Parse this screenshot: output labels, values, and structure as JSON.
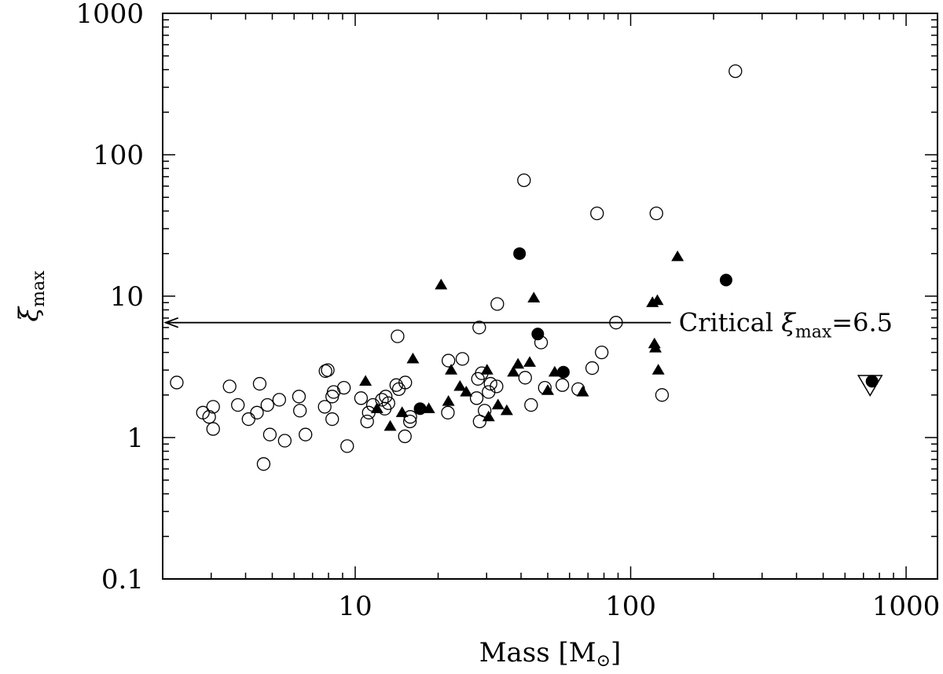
{
  "chart_data": {
    "type": "scatter",
    "title": "",
    "xlabel": "Mass [M",
    "xlabel_sub": "⊙",
    "xlabel_close": "]",
    "ylabel": "ξ",
    "ylabel_sub": "max",
    "xscale": "log",
    "yscale": "log",
    "xlim": [
      2,
      1300
    ],
    "ylim": [
      0.1,
      1000
    ],
    "x_ticks": [
      10,
      100,
      1000
    ],
    "y_ticks": [
      0.1,
      1,
      10,
      100,
      1000
    ],
    "x_tick_labels": [
      "10",
      "100",
      "1000"
    ],
    "y_tick_labels": [
      "0.1",
      "1",
      "10",
      "100",
      "1000"
    ],
    "grid": false,
    "annotation": {
      "text_prefix": "Critical ",
      "symbol": "ξ",
      "symbol_sub": "max",
      "text_suffix": "=6.5",
      "y": 6.5,
      "x_start": 140,
      "x_end": 2.05
    },
    "series": [
      {
        "marker": "open-circle",
        "points": [
          [
            2.25,
            2.45
          ],
          [
            2.8,
            1.5
          ],
          [
            2.95,
            1.4
          ],
          [
            3.05,
            1.65
          ],
          [
            3.05,
            1.15
          ],
          [
            3.5,
            2.3
          ],
          [
            3.75,
            1.7
          ],
          [
            4.1,
            1.35
          ],
          [
            4.4,
            1.5
          ],
          [
            4.5,
            2.4
          ],
          [
            4.65,
            0.65
          ],
          [
            4.8,
            1.7
          ],
          [
            4.9,
            1.05
          ],
          [
            5.3,
            1.85
          ],
          [
            5.55,
            0.95
          ],
          [
            6.25,
            1.95
          ],
          [
            6.3,
            1.55
          ],
          [
            6.6,
            1.05
          ],
          [
            7.75,
            1.65
          ],
          [
            7.8,
            2.95
          ],
          [
            7.95,
            3.0
          ],
          [
            8.25,
            1.95
          ],
          [
            8.25,
            1.35
          ],
          [
            8.35,
            2.1
          ],
          [
            9.1,
            2.25
          ],
          [
            9.35,
            0.87
          ],
          [
            10.5,
            1.9
          ],
          [
            11.05,
            1.3
          ],
          [
            11.2,
            1.5
          ],
          [
            11.6,
            1.7
          ],
          [
            12.5,
            1.85
          ],
          [
            12.9,
            1.95
          ],
          [
            12.8,
            1.6
          ],
          [
            13.2,
            1.75
          ],
          [
            14.1,
            2.35
          ],
          [
            14.25,
            5.2
          ],
          [
            14.4,
            2.2
          ],
          [
            15.2,
            2.45
          ],
          [
            15.15,
            1.02
          ],
          [
            15.8,
            1.3
          ],
          [
            15.85,
            1.4
          ],
          [
            21.7,
            1.5
          ],
          [
            21.8,
            3.5
          ],
          [
            24.5,
            3.6
          ],
          [
            27.6,
            1.9
          ],
          [
            27.9,
            2.6
          ],
          [
            28.2,
            6.0
          ],
          [
            28.3,
            1.3
          ],
          [
            28.8,
            2.85
          ],
          [
            29.5,
            1.55
          ],
          [
            30.5,
            2.1
          ],
          [
            31.0,
            2.4
          ],
          [
            32.6,
            2.3
          ],
          [
            32.8,
            8.8
          ],
          [
            41.0,
            66.0
          ],
          [
            41.4,
            2.65
          ],
          [
            43.5,
            1.7
          ],
          [
            47.3,
            4.7
          ],
          [
            48.8,
            2.25
          ],
          [
            56.5,
            2.35
          ],
          [
            64.5,
            2.2
          ],
          [
            72.5,
            3.1
          ],
          [
            75.5,
            38.5
          ],
          [
            78.5,
            4.0
          ],
          [
            88.5,
            6.5
          ],
          [
            124,
            38.5
          ],
          [
            130,
            2.0
          ],
          [
            240,
            390
          ]
        ]
      },
      {
        "marker": "filled-triangle",
        "points": [
          [
            10.9,
            2.5
          ],
          [
            12.0,
            1.6
          ],
          [
            13.4,
            1.2
          ],
          [
            14.8,
            1.5
          ],
          [
            16.2,
            3.6
          ],
          [
            18.5,
            1.6
          ],
          [
            20.5,
            12.0
          ],
          [
            21.8,
            1.8
          ],
          [
            22.3,
            3.0
          ],
          [
            24.0,
            2.3
          ],
          [
            25.3,
            2.1
          ],
          [
            30.1,
            3.0
          ],
          [
            30.5,
            1.4
          ],
          [
            33.0,
            1.7
          ],
          [
            35.5,
            1.55
          ],
          [
            37.5,
            2.9
          ],
          [
            39.0,
            3.3
          ],
          [
            43.0,
            3.4
          ],
          [
            44.5,
            9.7
          ],
          [
            50.0,
            2.15
          ],
          [
            53.0,
            2.9
          ],
          [
            67.0,
            2.1
          ],
          [
            120,
            9.0
          ],
          [
            122,
            4.6
          ],
          [
            123,
            4.3
          ],
          [
            125,
            9.3
          ],
          [
            126,
            3.0
          ],
          [
            148,
            19.0
          ]
        ]
      },
      {
        "marker": "filled-circle",
        "points": [
          [
            17.2,
            1.6
          ],
          [
            39.5,
            20.0
          ],
          [
            46.0,
            5.4
          ],
          [
            57.0,
            2.9
          ],
          [
            222,
            13.0
          ],
          [
            752,
            2.5
          ]
        ]
      },
      {
        "marker": "open-triangle-down",
        "points": [
          [
            740,
            2.4
          ]
        ]
      }
    ]
  }
}
